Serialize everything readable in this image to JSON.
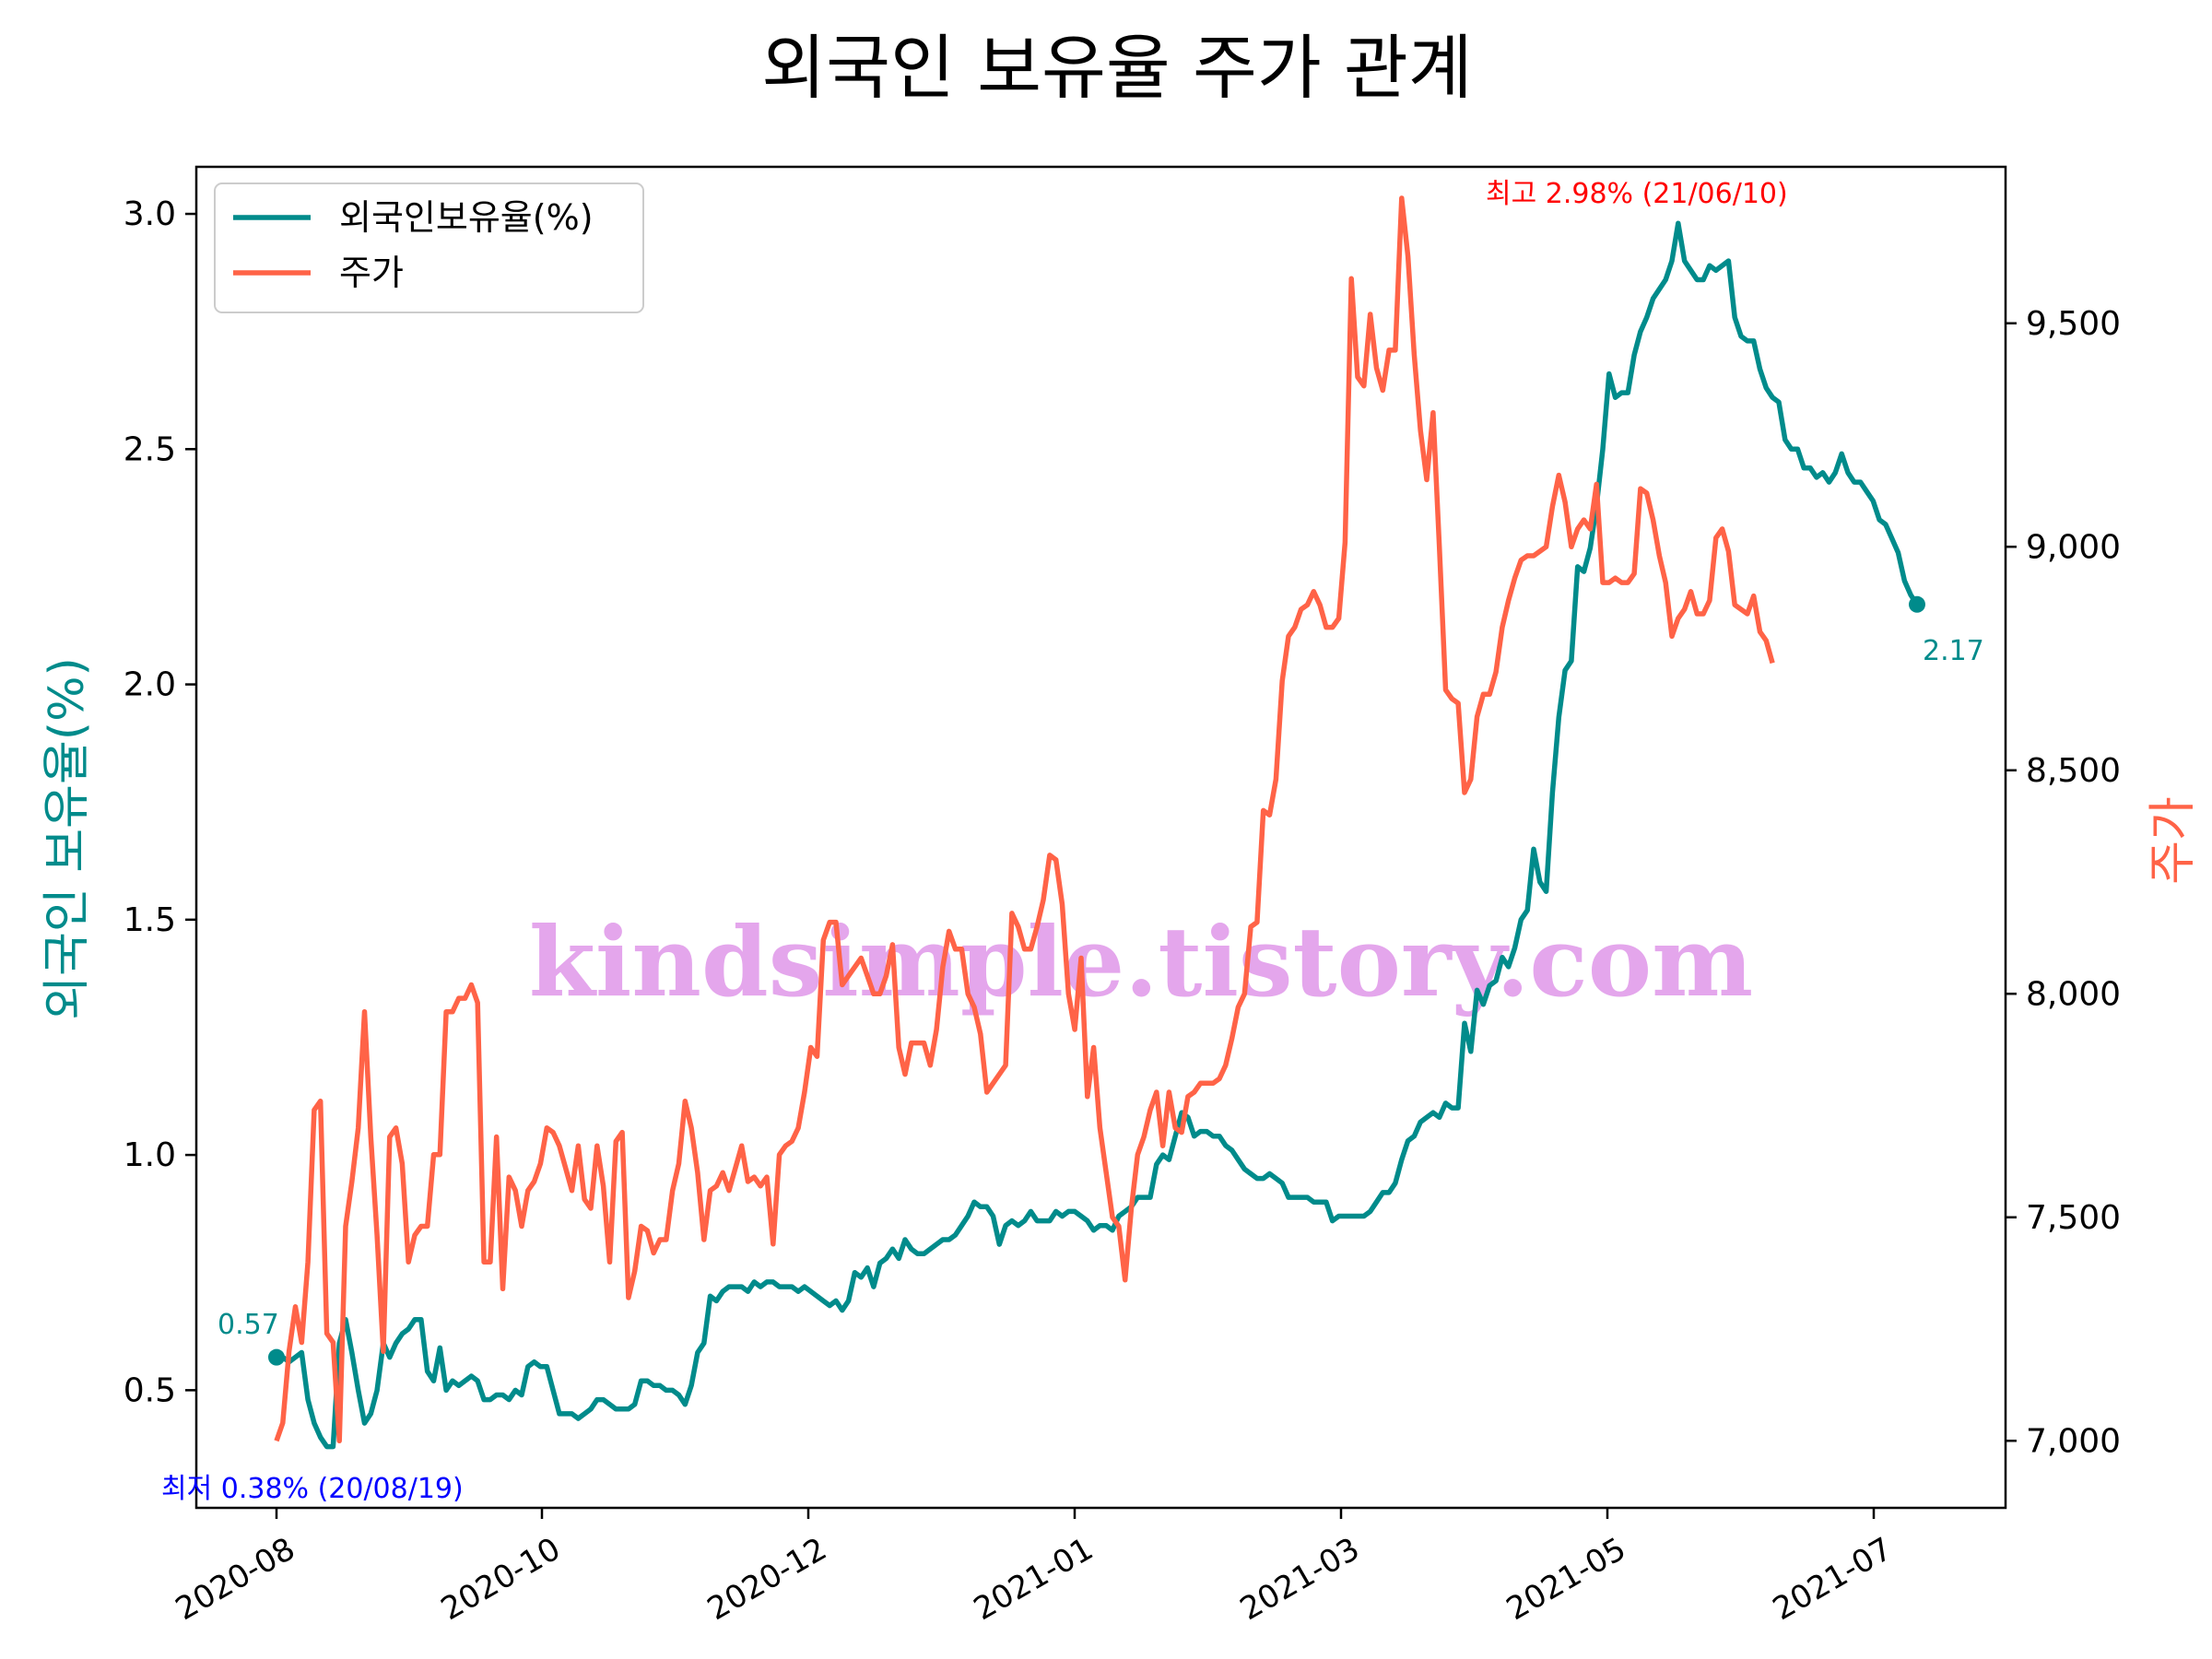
{
  "chart_data": {
    "type": "line",
    "title": "외국인 보유율 주가 관계",
    "ylabel_left": "외국인 보유율(%)",
    "ylabel_right": "주가",
    "watermark": "kindsimple.tistory.com",
    "x_ticks": [
      "2020-08",
      "2020-10",
      "2020-12",
      "2021-01",
      "2021-03",
      "2021-05",
      "2021-07"
    ],
    "y_left_ticks": [
      "0.5",
      "1.0",
      "1.5",
      "2.0",
      "2.5",
      "3.0"
    ],
    "y_right_ticks": [
      "7,000",
      "7,500",
      "8,000",
      "8,500",
      "9,000",
      "9,500"
    ],
    "ylim_left": [
      0.25,
      3.1
    ],
    "ylim_right": [
      6850,
      9850
    ],
    "grid": false,
    "legend_position": "top-left",
    "series": [
      {
        "name": "외국인보유율(%)",
        "axis": "left",
        "color": "#008b8b",
        "values": [
          0.57,
          0.57,
          0.56,
          0.57,
          0.58,
          0.48,
          0.43,
          0.4,
          0.38,
          0.38,
          0.6,
          0.65,
          0.58,
          0.5,
          0.43,
          0.45,
          0.5,
          0.6,
          0.57,
          0.6,
          0.62,
          0.63,
          0.65,
          0.65,
          0.54,
          0.52,
          0.59,
          0.5,
          0.52,
          0.51,
          0.52,
          0.53,
          0.52,
          0.48,
          0.48,
          0.49,
          0.49,
          0.48,
          0.5,
          0.49,
          0.55,
          0.56,
          0.55,
          0.55,
          0.5,
          0.45,
          0.45,
          0.45,
          0.44,
          0.45,
          0.46,
          0.48,
          0.48,
          0.47,
          0.46,
          0.46,
          0.46,
          0.47,
          0.52,
          0.52,
          0.51,
          0.51,
          0.5,
          0.5,
          0.49,
          0.47,
          0.51,
          0.58,
          0.6,
          0.7,
          0.69,
          0.71,
          0.72,
          0.72,
          0.72,
          0.71,
          0.73,
          0.72,
          0.73,
          0.73,
          0.72,
          0.72,
          0.72,
          0.71,
          0.72,
          0.71,
          0.7,
          0.69,
          0.68,
          0.69,
          0.67,
          0.69,
          0.75,
          0.74,
          0.76,
          0.72,
          0.77,
          0.78,
          0.8,
          0.78,
          0.82,
          0.8,
          0.79,
          0.79,
          0.8,
          0.81,
          0.82,
          0.82,
          0.83,
          0.85,
          0.87,
          0.9,
          0.89,
          0.89,
          0.87,
          0.81,
          0.85,
          0.86,
          0.85,
          0.86,
          0.88,
          0.86,
          0.86,
          0.86,
          0.88,
          0.87,
          0.88,
          0.88,
          0.87,
          0.86,
          0.84,
          0.85,
          0.85,
          0.84,
          0.87,
          0.88,
          0.89,
          0.91,
          0.91,
          0.91,
          0.98,
          1.0,
          0.99,
          1.04,
          1.09,
          1.08,
          1.04,
          1.05,
          1.05,
          1.04,
          1.04,
          1.02,
          1.01,
          0.99,
          0.97,
          0.96,
          0.95,
          0.95,
          0.96,
          0.95,
          0.94,
          0.91,
          0.91,
          0.91,
          0.91,
          0.9,
          0.9,
          0.9,
          0.86,
          0.87,
          0.87,
          0.87,
          0.87,
          0.87,
          0.88,
          0.9,
          0.92,
          0.92,
          0.94,
          0.99,
          1.03,
          1.04,
          1.07,
          1.08,
          1.09,
          1.08,
          1.11,
          1.1,
          1.1,
          1.28,
          1.22,
          1.35,
          1.32,
          1.36,
          1.37,
          1.42,
          1.4,
          1.44,
          1.5,
          1.52,
          1.65,
          1.58,
          1.56,
          1.77,
          1.93,
          2.03,
          2.05,
          2.25,
          2.24,
          2.29,
          2.38,
          2.5,
          2.66,
          2.61,
          2.62,
          2.62,
          2.7,
          2.75,
          2.78,
          2.82,
          2.84,
          2.86,
          2.9,
          2.98,
          2.9,
          2.88,
          2.86,
          2.86,
          2.89,
          2.88,
          2.89,
          2.9,
          2.78,
          2.74,
          2.73,
          2.73,
          2.67,
          2.63,
          2.61,
          2.6,
          2.52,
          2.5,
          2.5,
          2.46,
          2.46,
          2.44,
          2.45,
          2.43,
          2.45,
          2.49,
          2.45,
          2.43,
          2.43,
          2.41,
          2.39,
          2.35,
          2.34,
          2.31,
          2.28,
          2.22,
          2.19,
          2.17
        ]
      },
      {
        "name": "주가",
        "axis": "right",
        "color": "#ff6347",
        "values": [
          7000,
          7040,
          7200,
          7300,
          7220,
          7400,
          7740,
          7760,
          7240,
          7220,
          7000,
          7480,
          7580,
          7700,
          7960,
          7680,
          7460,
          7200,
          7680,
          7700,
          7620,
          7400,
          7460,
          7480,
          7480,
          7640,
          7640,
          7960,
          7960,
          7990,
          7990,
          8020,
          7980,
          7400,
          7400,
          7680,
          7340,
          7590,
          7560,
          7480,
          7560,
          7580,
          7620,
          7700,
          7690,
          7660,
          7610,
          7560,
          7660,
          7540,
          7520,
          7660,
          7570,
          7400,
          7670,
          7690,
          7320,
          7380,
          7480,
          7470,
          7420,
          7450,
          7450,
          7560,
          7620,
          7760,
          7700,
          7600,
          7450,
          7560,
          7570,
          7600,
          7560,
          7610,
          7660,
          7580,
          7590,
          7570,
          7590,
          7440,
          7640,
          7660,
          7670,
          7700,
          7780,
          7880,
          7860,
          8120,
          8160,
          8160,
          8020,
          8040,
          8060,
          8080,
          8040,
          8000,
          8000,
          8040,
          8110,
          7880,
          7820,
          7890,
          7890,
          7890,
          7840,
          7920,
          8060,
          8140,
          8100,
          8100,
          8000,
          7970,
          7910,
          7780,
          7800,
          7820,
          7840,
          8180,
          8150,
          8100,
          8100,
          8150,
          8210,
          8310,
          8300,
          8200,
          8000,
          7920,
          8080,
          7770,
          7880,
          7700,
          7600,
          7500,
          7480,
          7360,
          7520,
          7640,
          7680,
          7740,
          7780,
          7660,
          7780,
          7700,
          7690,
          7770,
          7780,
          7800,
          7800,
          7800,
          7810,
          7840,
          7900,
          7970,
          8000,
          8150,
          8160,
          8410,
          8400,
          8480,
          8700,
          8800,
          8820,
          8860,
          8870,
          8900,
          8870,
          8820,
          8820,
          8840,
          9010,
          9600,
          9380,
          9360,
          9520,
          9400,
          9350,
          9440,
          9440,
          9780,
          9650,
          9430,
          9260,
          9150,
          9300,
          9000,
          8680,
          8660,
          8650,
          8450,
          8480,
          8620,
          8670,
          8670,
          8720,
          8820,
          8880,
          8930,
          8970,
          8980,
          8980,
          8990,
          9000,
          9090,
          9160,
          9100,
          9000,
          9040,
          9060,
          9040,
          9140,
          8920,
          8920,
          8930,
          8920,
          8920,
          8940,
          9130,
          9120,
          9060,
          8980,
          8920,
          8800,
          8840,
          8860,
          8900,
          8850,
          8850,
          8880,
          9020,
          9040,
          8990,
          8870,
          8860,
          8850,
          8890,
          8810,
          8790,
          8740
        ]
      }
    ],
    "annotations": {
      "max_label": "최고 2.98% (21/06/10)",
      "min_label": "최저 0.38% (20/08/19)",
      "start_label": "0.57",
      "end_label": "2.17"
    }
  }
}
